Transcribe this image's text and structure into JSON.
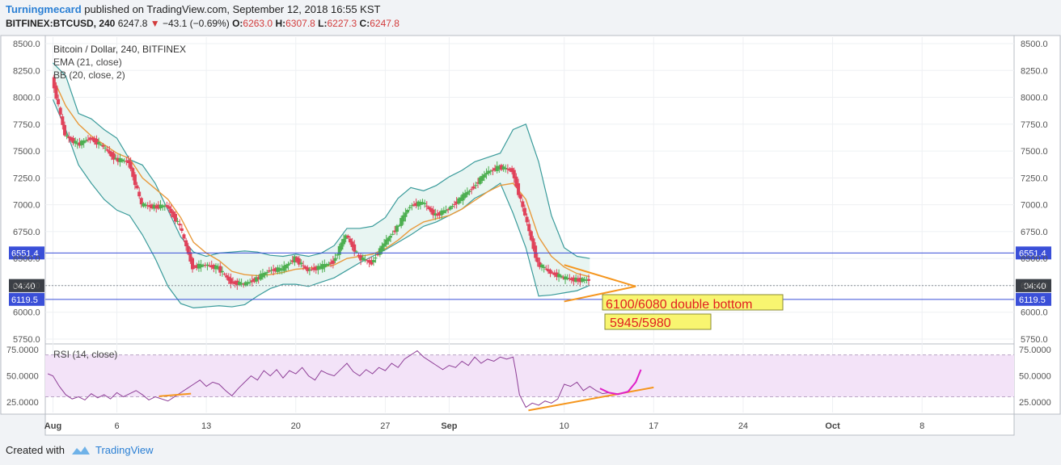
{
  "header": {
    "author": "Turningmecard",
    "published_text": "published on TradingView.com, September 12, 2018 16:55 KST",
    "symbol": "BITFINEX:BTCUSD, 240",
    "last": "6247.8",
    "change": "−43.1 (−0.69%)",
    "open_label": "O:",
    "open": "6263.0",
    "high_label": "H:",
    "high": "6307.8",
    "low_label": "L:",
    "low": "6227.3",
    "close_label": "C:",
    "close": "6247.8"
  },
  "footer": {
    "created_with": "Created with",
    "brand": "TradingView"
  },
  "colors": {
    "up": "#4caf50",
    "down": "#e0425a",
    "ema": "#e89a3c",
    "bb_band": "#3a9b9b",
    "bb_fill": "#e8f5f2",
    "level_line": "#3a4fd8",
    "rsi_line": "#8e3f97",
    "rsi_fill": "#f3e3f8",
    "trend": "#f5961e",
    "annotation_bg": "#f8f570",
    "annotation_text": "#e02020"
  },
  "chart_data": [
    {
      "type": "candlestick",
      "title": "Bitcoin / Dollar, 240, BITFINEX",
      "indicators": [
        "EMA (21, close)",
        "BB (20, close, 2)"
      ],
      "y_ticks": [
        5750,
        6000,
        6250,
        6500,
        6750,
        7000,
        7250,
        7500,
        7750,
        8000,
        8250,
        8500
      ],
      "y_tick_labels": [
        "5750.0",
        "6000.0",
        "6250.0",
        "6500.0",
        "6750.0",
        "7000.0",
        "7250.0",
        "7500.0",
        "7750.0",
        "8000.0",
        "8250.0",
        "8500.0"
      ],
      "ylim": [
        5720,
        8560
      ],
      "x_ticks": [
        "Aug",
        "6",
        "13",
        "20",
        "27",
        "Sep",
        "10",
        "17",
        "24",
        "Oct",
        "8"
      ],
      "x_tick_days": [
        0,
        5,
        12,
        19,
        26,
        31,
        40,
        47,
        54,
        61,
        68
      ],
      "xlim_days": [
        -0.6,
        75.2
      ],
      "close_series": [
        [
          0,
          8180
        ],
        [
          1,
          7650
        ],
        [
          2,
          7560
        ],
        [
          3,
          7620
        ],
        [
          4,
          7540
        ],
        [
          5,
          7420
        ],
        [
          6,
          7400
        ],
        [
          7,
          7000
        ],
        [
          8,
          6980
        ],
        [
          9,
          6990
        ],
        [
          10,
          6800
        ],
        [
          11,
          6420
        ],
        [
          12,
          6440
        ],
        [
          13,
          6410
        ],
        [
          14,
          6280
        ],
        [
          15,
          6260
        ],
        [
          16,
          6310
        ],
        [
          17,
          6390
        ],
        [
          18,
          6400
        ],
        [
          19,
          6500
        ],
        [
          20,
          6390
        ],
        [
          21,
          6420
        ],
        [
          22,
          6470
        ],
        [
          23,
          6720
        ],
        [
          24,
          6510
        ],
        [
          25,
          6460
        ],
        [
          26,
          6640
        ],
        [
          27,
          6790
        ],
        [
          28,
          6990
        ],
        [
          29,
          7020
        ],
        [
          30,
          6900
        ],
        [
          31,
          6960
        ],
        [
          32,
          7060
        ],
        [
          33,
          7170
        ],
        [
          34,
          7300
        ],
        [
          35,
          7350
        ],
        [
          36,
          7320
        ],
        [
          37,
          6900
        ],
        [
          38,
          6450
        ],
        [
          39,
          6370
        ],
        [
          40,
          6320
        ],
        [
          41,
          6300
        ],
        [
          42,
          6300
        ]
      ],
      "bb_upper": [
        [
          0,
          8320
        ],
        [
          1,
          8200
        ],
        [
          2,
          7850
        ],
        [
          3,
          7800
        ],
        [
          4,
          7700
        ],
        [
          5,
          7620
        ],
        [
          6,
          7420
        ],
        [
          7,
          7370
        ],
        [
          8,
          7200
        ],
        [
          9,
          6950
        ],
        [
          10,
          6700
        ],
        [
          11,
          6560
        ],
        [
          12,
          6520
        ],
        [
          13,
          6550
        ],
        [
          14,
          6560
        ],
        [
          15,
          6570
        ],
        [
          16,
          6560
        ],
        [
          17,
          6530
        ],
        [
          18,
          6520
        ],
        [
          19,
          6540
        ],
        [
          20,
          6520
        ],
        [
          21,
          6550
        ],
        [
          22,
          6620
        ],
        [
          23,
          6780
        ],
        [
          24,
          6780
        ],
        [
          25,
          6800
        ],
        [
          26,
          6880
        ],
        [
          27,
          7060
        ],
        [
          28,
          7160
        ],
        [
          29,
          7130
        ],
        [
          30,
          7180
        ],
        [
          31,
          7260
        ],
        [
          32,
          7320
        ],
        [
          33,
          7400
        ],
        [
          34,
          7440
        ],
        [
          35,
          7480
        ],
        [
          36,
          7700
        ],
        [
          37,
          7750
        ],
        [
          38,
          7400
        ],
        [
          39,
          6900
        ],
        [
          40,
          6600
        ],
        [
          41,
          6520
        ],
        [
          42,
          6500
        ]
      ],
      "bb_lower": [
        [
          0,
          7980
        ],
        [
          1,
          7700
        ],
        [
          2,
          7370
        ],
        [
          3,
          7200
        ],
        [
          4,
          7050
        ],
        [
          5,
          6950
        ],
        [
          6,
          6900
        ],
        [
          7,
          6720
        ],
        [
          8,
          6500
        ],
        [
          9,
          6240
        ],
        [
          10,
          6080
        ],
        [
          11,
          6040
        ],
        [
          12,
          6050
        ],
        [
          13,
          6060
        ],
        [
          14,
          6050
        ],
        [
          15,
          6070
        ],
        [
          16,
          6150
        ],
        [
          17,
          6220
        ],
        [
          18,
          6260
        ],
        [
          19,
          6260
        ],
        [
          20,
          6240
        ],
        [
          21,
          6280
        ],
        [
          22,
          6320
        ],
        [
          23,
          6390
        ],
        [
          24,
          6460
        ],
        [
          25,
          6520
        ],
        [
          26,
          6580
        ],
        [
          27,
          6650
        ],
        [
          28,
          6720
        ],
        [
          29,
          6800
        ],
        [
          30,
          6840
        ],
        [
          31,
          6900
        ],
        [
          32,
          6960
        ],
        [
          33,
          7060
        ],
        [
          34,
          7120
        ],
        [
          35,
          7200
        ],
        [
          36,
          6920
        ],
        [
          37,
          6600
        ],
        [
          38,
          6150
        ],
        [
          39,
          6160
        ],
        [
          40,
          6180
        ],
        [
          41,
          6200
        ],
        [
          42,
          6250
        ]
      ],
      "ema_21": [
        [
          0,
          8180
        ],
        [
          1,
          7920
        ],
        [
          2,
          7750
        ],
        [
          3,
          7640
        ],
        [
          4,
          7560
        ],
        [
          5,
          7480
        ],
        [
          6,
          7430
        ],
        [
          7,
          7250
        ],
        [
          8,
          7150
        ],
        [
          9,
          7050
        ],
        [
          10,
          6880
        ],
        [
          11,
          6650
        ],
        [
          12,
          6550
        ],
        [
          13,
          6480
        ],
        [
          14,
          6380
        ],
        [
          15,
          6350
        ],
        [
          16,
          6340
        ],
        [
          17,
          6350
        ],
        [
          18,
          6370
        ],
        [
          19,
          6400
        ],
        [
          20,
          6410
        ],
        [
          21,
          6420
        ],
        [
          22,
          6440
        ],
        [
          23,
          6500
        ],
        [
          24,
          6520
        ],
        [
          25,
          6540
        ],
        [
          26,
          6590
        ],
        [
          27,
          6670
        ],
        [
          28,
          6770
        ],
        [
          29,
          6840
        ],
        [
          30,
          6870
        ],
        [
          31,
          6900
        ],
        [
          32,
          6960
        ],
        [
          33,
          7040
        ],
        [
          34,
          7120
        ],
        [
          35,
          7180
        ],
        [
          36,
          7200
        ],
        [
          37,
          7050
        ],
        [
          38,
          6700
        ],
        [
          39,
          6520
        ],
        [
          40,
          6420
        ],
        [
          41,
          6360
        ],
        [
          42,
          6330
        ]
      ],
      "horizontal_levels": [
        {
          "value": 6551.4,
          "label": "6551.4",
          "style": "blue-line"
        },
        {
          "value": 6247.8,
          "label": "6247.8",
          "style": "last-price"
        },
        {
          "value": 6119.5,
          "label": "6119.5",
          "style": "blue-line",
          "countdown": "04:40"
        }
      ],
      "trendlines": [
        {
          "from": [
            40.0,
            6440
          ],
          "to": [
            45.6,
            6240
          ]
        },
        {
          "from": [
            40.0,
            6100
          ],
          "to": [
            45.6,
            6240
          ]
        }
      ],
      "annotations": [
        {
          "text": "6100/6080 double bottom"
        },
        {
          "text": "5945/5980"
        }
      ]
    },
    {
      "type": "line",
      "title": "RSI (14, close)",
      "y_ticks": [
        25,
        50,
        75
      ],
      "y_tick_labels": [
        "25.0000",
        "50.0000",
        "75.0000"
      ],
      "ylim": [
        15,
        79
      ],
      "band": [
        30,
        70
      ],
      "series": [
        {
          "values": [
            [
              -0.4,
              52
            ],
            [
              0,
              50
            ],
            [
              0.5,
              40
            ],
            [
              1,
              32
            ],
            [
              1.5,
              28
            ],
            [
              2,
              30
            ],
            [
              2.5,
              27
            ],
            [
              3,
              33
            ],
            [
              3.5,
              29
            ],
            [
              4,
              32
            ],
            [
              4.5,
              28
            ],
            [
              5,
              34
            ],
            [
              5.5,
              30
            ],
            [
              6,
              33
            ],
            [
              6.5,
              36
            ],
            [
              7,
              32
            ],
            [
              7.5,
              27
            ],
            [
              8,
              30
            ],
            [
              8.5,
              28
            ],
            [
              9,
              26
            ],
            [
              9.5,
              30
            ],
            [
              10,
              34
            ],
            [
              10.5,
              38
            ],
            [
              11,
              42
            ],
            [
              11.5,
              46
            ],
            [
              12,
              40
            ],
            [
              12.5,
              44
            ],
            [
              13,
              42
            ],
            [
              13.5,
              36
            ],
            [
              14,
              31
            ],
            [
              14.5,
              38
            ],
            [
              15,
              44
            ],
            [
              15.5,
              50
            ],
            [
              16,
              46
            ],
            [
              16.5,
              55
            ],
            [
              17,
              50
            ],
            [
              17.5,
              56
            ],
            [
              18,
              48
            ],
            [
              18.5,
              55
            ],
            [
              19,
              52
            ],
            [
              19.5,
              58
            ],
            [
              20,
              50
            ],
            [
              20.5,
              46
            ],
            [
              21,
              55
            ],
            [
              21.5,
              52
            ],
            [
              22,
              50
            ],
            [
              22.5,
              56
            ],
            [
              23,
              62
            ],
            [
              23.5,
              54
            ],
            [
              24,
              50
            ],
            [
              24.5,
              56
            ],
            [
              25,
              52
            ],
            [
              25.5,
              58
            ],
            [
              26,
              55
            ],
            [
              26.5,
              62
            ],
            [
              27,
              58
            ],
            [
              27.5,
              66
            ],
            [
              28,
              70
            ],
            [
              28.5,
              74
            ],
            [
              29,
              68
            ],
            [
              29.5,
              64
            ],
            [
              30,
              60
            ],
            [
              30.5,
              56
            ],
            [
              31,
              60
            ],
            [
              31.5,
              58
            ],
            [
              32,
              64
            ],
            [
              32.5,
              60
            ],
            [
              33,
              68
            ],
            [
              33.5,
              62
            ],
            [
              34,
              66
            ],
            [
              34.5,
              64
            ],
            [
              35,
              68
            ],
            [
              35.5,
              66
            ],
            [
              36,
              68
            ],
            [
              36.2,
              55
            ],
            [
              36.5,
              32
            ],
            [
              37,
              20
            ],
            [
              37.5,
              24
            ],
            [
              38,
              22
            ],
            [
              38.5,
              26
            ],
            [
              39,
              24
            ],
            [
              39.5,
              28
            ],
            [
              40,
              42
            ],
            [
              40.5,
              40
            ],
            [
              41,
              44
            ],
            [
              41.5,
              36
            ],
            [
              42,
              40
            ],
            [
              42.5,
              36
            ],
            [
              43,
              33
            ],
            [
              43.5,
              34
            ]
          ]
        }
      ],
      "trendlines": [
        {
          "from": [
            37.2,
            17
          ],
          "to": [
            47.0,
            39
          ]
        },
        {
          "from": [
            8.3,
            30.5
          ],
          "to": [
            10.8,
            33
          ]
        }
      ],
      "projection": [
        [
          42.8,
          38
        ],
        [
          43.5,
          34
        ],
        [
          44.2,
          32.5
        ],
        [
          45,
          35
        ],
        [
          45.6,
          44
        ],
        [
          46,
          56
        ]
      ]
    }
  ]
}
